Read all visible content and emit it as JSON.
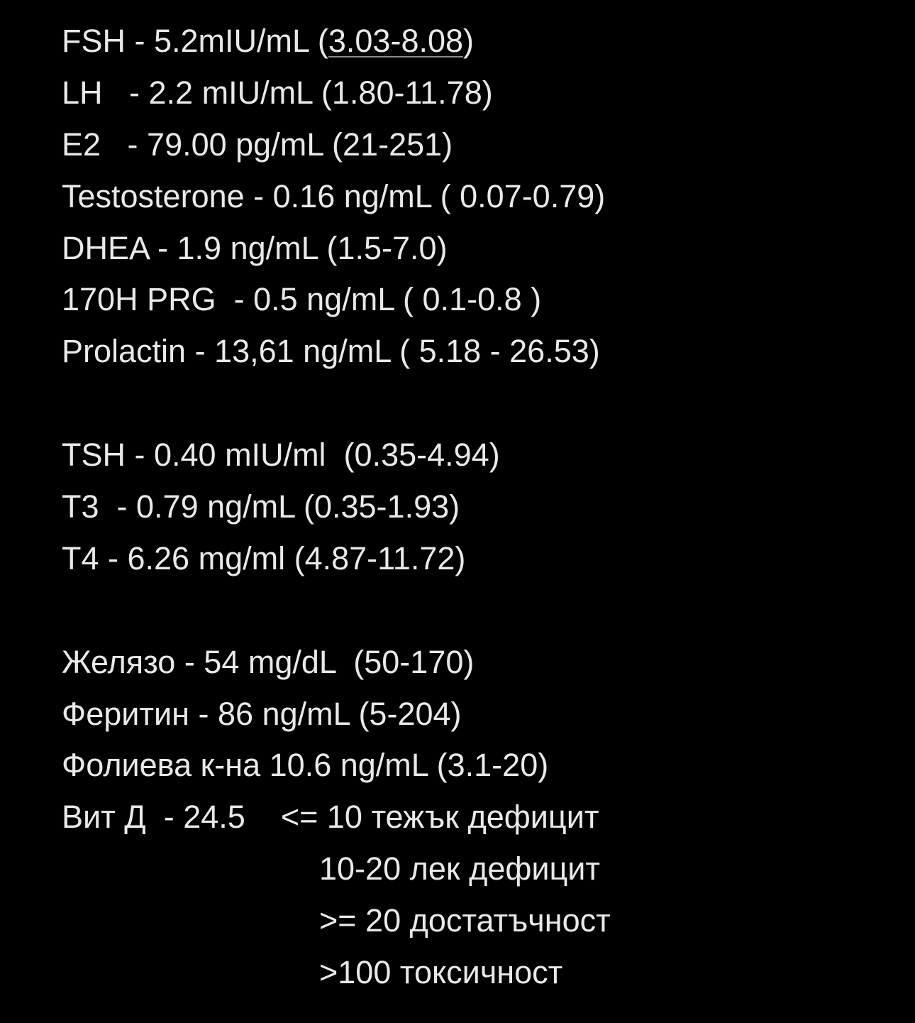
{
  "note": {
    "hormones": [
      {
        "prefix": "FSH - 5.2mIU/mL (",
        "link": "3.03-8.08",
        "suffix": ")"
      },
      "LH   - 2.2 mIU/mL (1.80-11.78)",
      "E2   - 79.00 pg/mL (21-251)",
      "Testosterone - 0.16 ng/mL ( 0.07-0.79)",
      "DHEA - 1.9 ng/mL (1.5-7.0)",
      "170H PRG  - 0.5 ng/mL ( 0.1-0.8 )",
      "Prolactin - 13,61 ng/mL ( 5.18 - 26.53)"
    ],
    "thyroid": [
      "TSH - 0.40 mIU/ml  (0.35-4.94)",
      "T3  - 0.79 ng/mL (0.35-1.93)",
      "T4 - 6.26 mg/ml (4.87-11.72)"
    ],
    "iron_vitamins": [
      "Желязо - 54 mg/dL  (50-170)",
      "Феритин - 86 ng/mL (5-204)",
      "Фолиева к-на 10.6 ng/mL (3.1-20)",
      "Вит Д  - 24.5    <= 10 тежък дефицит"
    ],
    "vitd_scale": [
      "10-20 лек дефицит",
      ">= 20 достатъчност",
      ">100 токсичност"
    ]
  },
  "colors": {
    "background": "#000000",
    "text": "#e9e9e9"
  }
}
